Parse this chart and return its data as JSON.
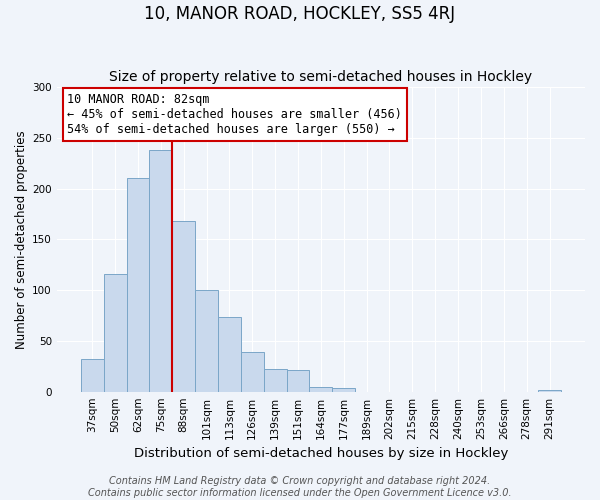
{
  "title": "10, MANOR ROAD, HOCKLEY, SS5 4RJ",
  "subtitle": "Size of property relative to semi-detached houses in Hockley",
  "xlabel": "Distribution of semi-detached houses by size in Hockley",
  "ylabel": "Number of semi-detached properties",
  "bar_labels": [
    "37sqm",
    "50sqm",
    "62sqm",
    "75sqm",
    "88sqm",
    "101sqm",
    "113sqm",
    "126sqm",
    "139sqm",
    "151sqm",
    "164sqm",
    "177sqm",
    "189sqm",
    "202sqm",
    "215sqm",
    "228sqm",
    "240sqm",
    "253sqm",
    "266sqm",
    "278sqm",
    "291sqm"
  ],
  "bar_values": [
    32,
    116,
    210,
    238,
    168,
    100,
    74,
    39,
    22,
    21,
    5,
    4,
    0,
    0,
    0,
    0,
    0,
    0,
    0,
    0,
    2
  ],
  "bar_color": "#c9d9ed",
  "bar_edge_color": "#7aa6c8",
  "vline_color": "#cc0000",
  "vline_label": "10 MANOR ROAD: 82sqm",
  "annotation_line1": "← 45% of semi-detached houses are smaller (456)",
  "annotation_line2": "54% of semi-detached houses are larger (550) →",
  "annotation_box_color": "#ffffff",
  "annotation_box_edge": "#cc0000",
  "ylim": [
    0,
    300
  ],
  "yticks": [
    0,
    50,
    100,
    150,
    200,
    250,
    300
  ],
  "footer_line1": "Contains HM Land Registry data © Crown copyright and database right 2024.",
  "footer_line2": "Contains public sector information licensed under the Open Government Licence v3.0.",
  "bg_color": "#f0f4fa",
  "title_fontsize": 12,
  "subtitle_fontsize": 10,
  "xlabel_fontsize": 9.5,
  "ylabel_fontsize": 8.5,
  "footer_fontsize": 7,
  "tick_fontsize": 7.5,
  "annot_fontsize": 8.5
}
